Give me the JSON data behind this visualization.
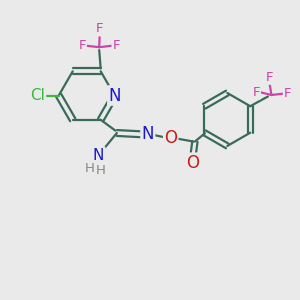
{
  "bg_color": "#eaeaea",
  "bond_color": "#3a6b5a",
  "bond_width": 1.6,
  "atom_colors": {
    "N": "#1a1acc",
    "O": "#cc1a1a",
    "Cl": "#3cb83c",
    "F": "#cc44aa",
    "C": "#000000",
    "H": "#888888"
  },
  "font_size_atom": 11,
  "font_size_small": 9.5
}
